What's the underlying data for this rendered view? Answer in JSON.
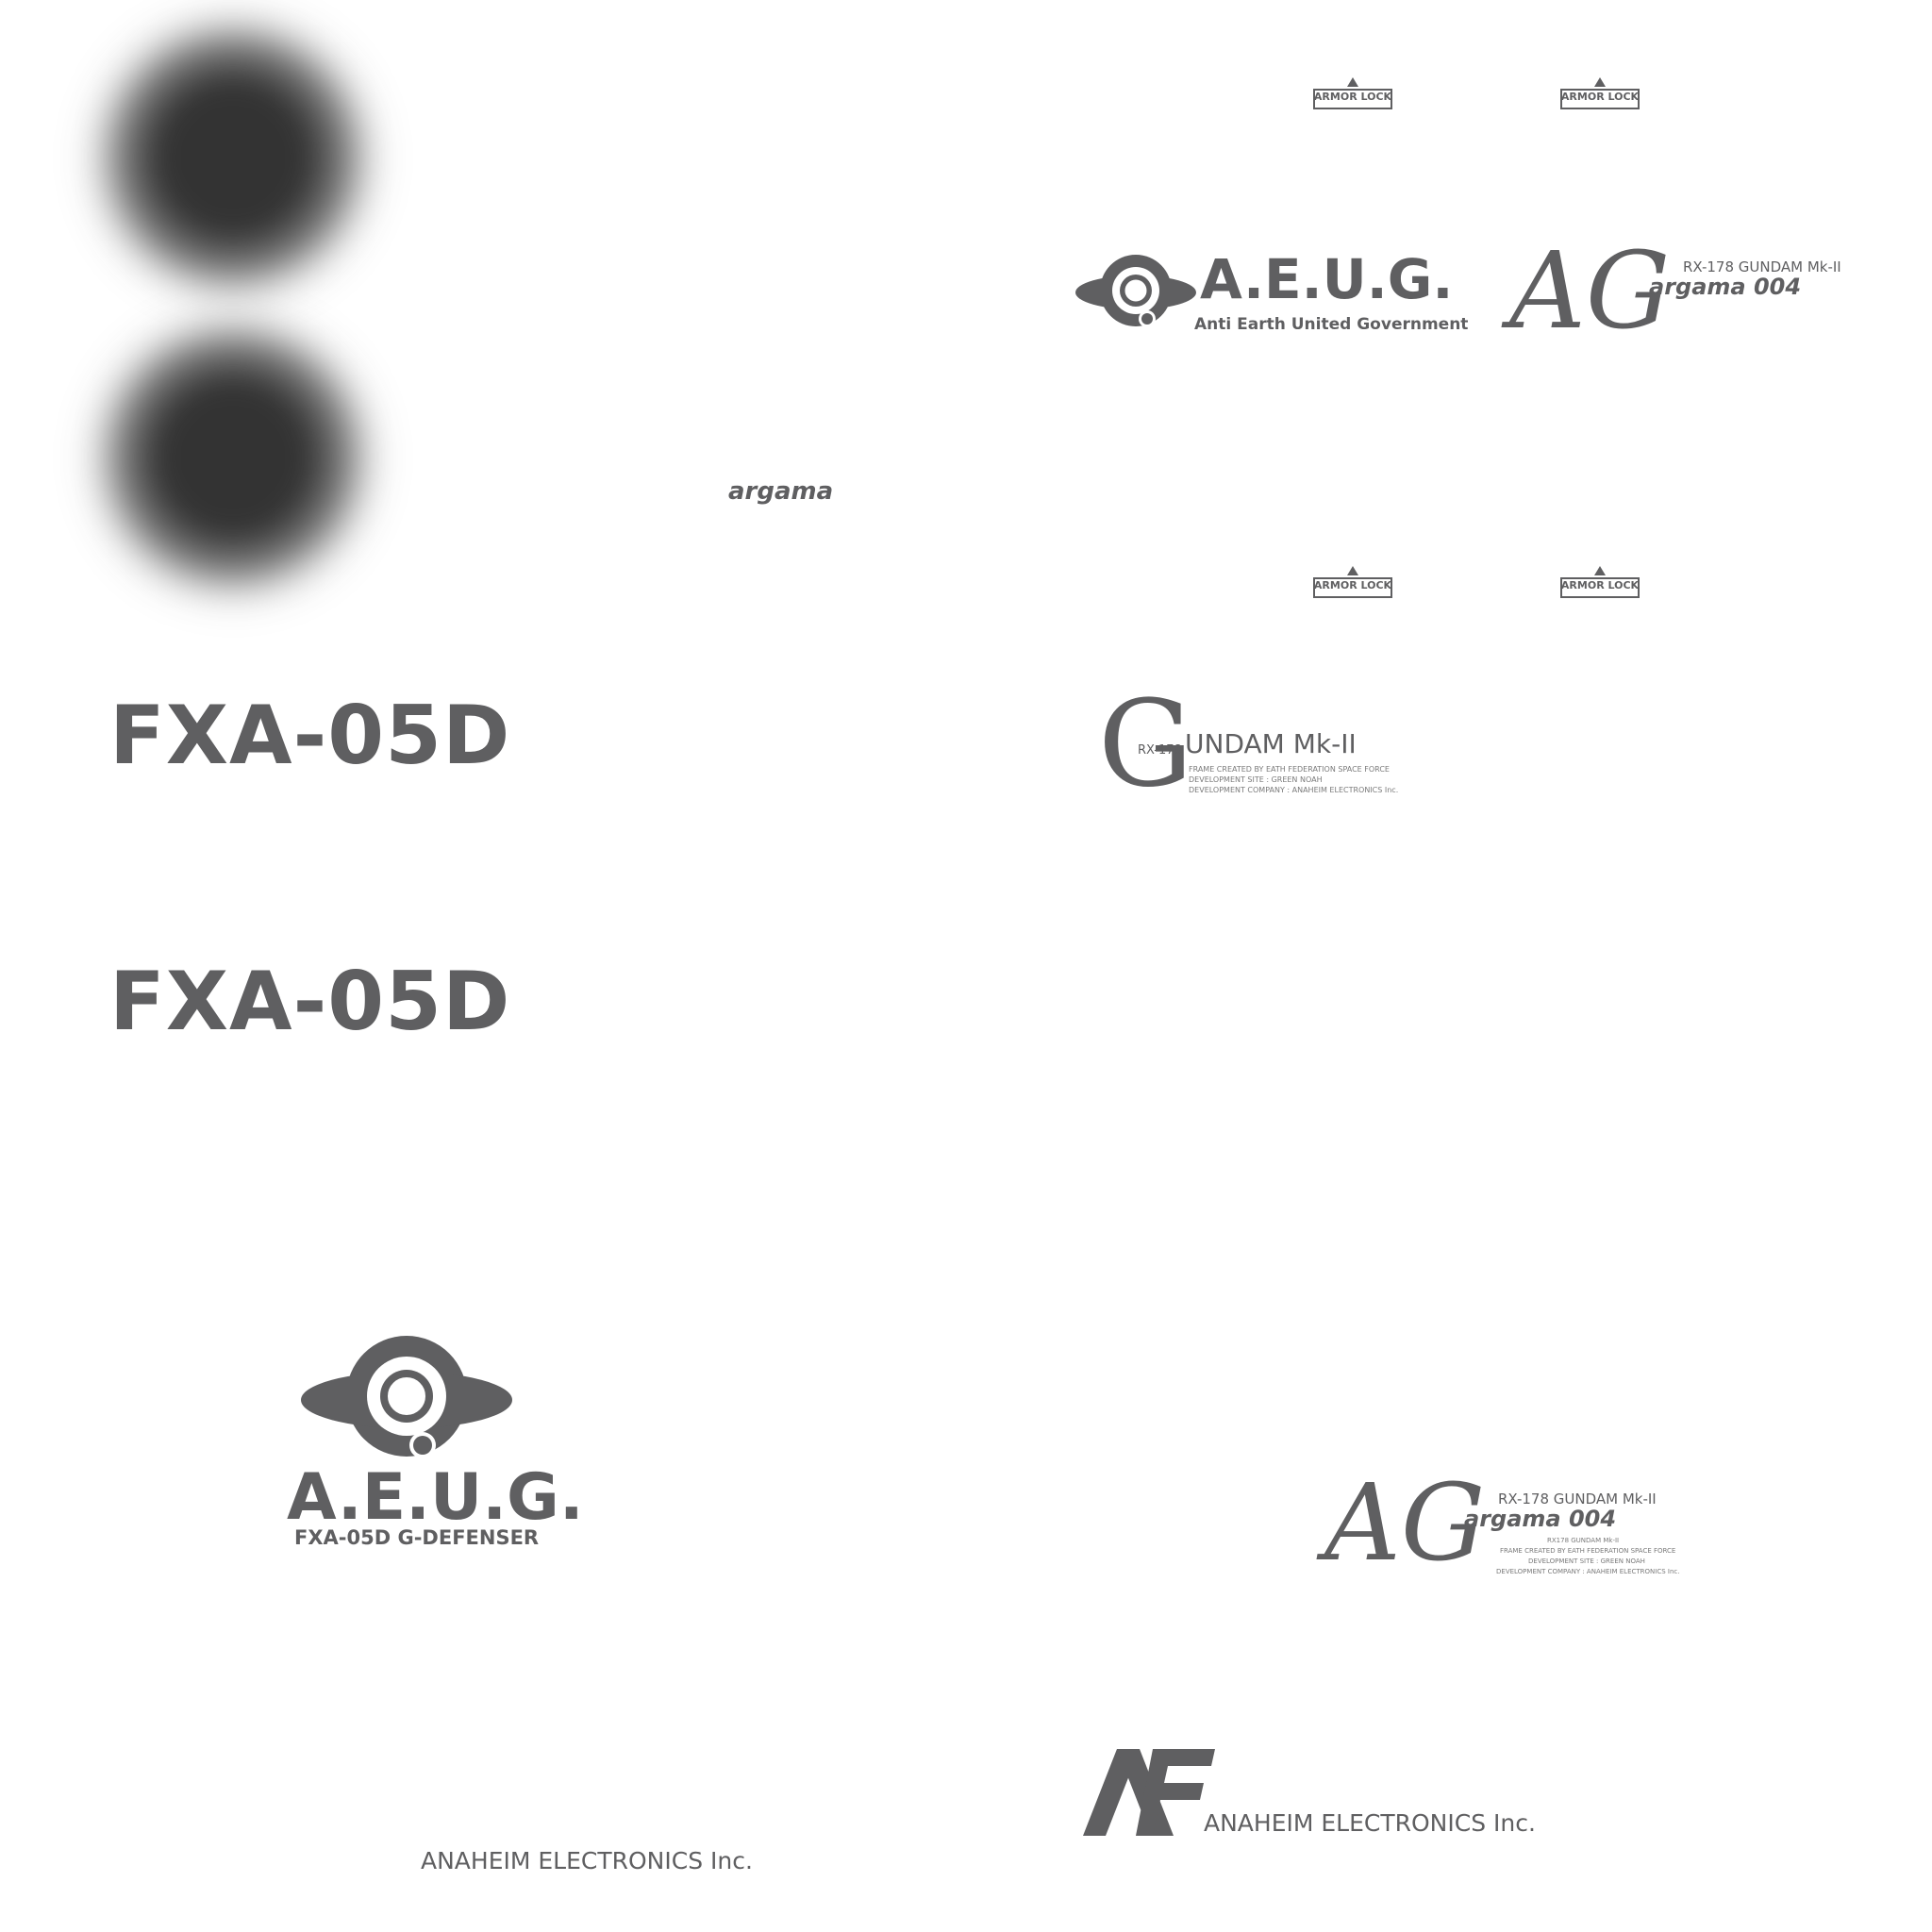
{
  "colors": {
    "ink": "#5f5f61",
    "dark": "#333333",
    "background": "#ffffff"
  },
  "logo_text": {
    "argama_small": "argama",
    "fxa_1": "FXA-05D",
    "fxa_2": "FXA-05D",
    "aeug_big_title": "A.E.U.G.",
    "aeug_big_sub": "FXA-05D G-DEFENSER",
    "anaheim_text_1": "ANAHEIM ELECTRONICS Inc.",
    "anaheim_text_2": "ANAHEIM ELECTRONICS Inc.",
    "aeug_small_title": "A.E.U.G.",
    "aeug_small_sub": "Anti Earth United Government",
    "ag_1_letters": "AG",
    "ag_1_model": "RX-178  GUNDAM Mk-II",
    "ag_1_argama": "argama 004",
    "gundam_g": "G",
    "gundam_rx": "RX-178",
    "gundam_title": "UNDAM Mk-II",
    "gundam_line1": "FRAME CREATED BY EATH FEDERATION SPACE FORCE",
    "gundam_line2": "DEVELOPMENT SITE : GREEN NOAH",
    "gundam_line3": "DEVELOPMENT COMPANY : ANAHEIM ELECTRONICS Inc.",
    "ag_2_letters": "AG",
    "ag_2_model": "RX-178  GUNDAM Mk-II",
    "ag_2_argama": "argama 004",
    "ag_2_line0": "RX178 GUNDAM Mk-II",
    "ag_2_line1": "FRAME CREATED BY EATH FEDERATION SPACE FORCE",
    "ag_2_line2": "DEVELOPMENT SITE : GREEN NOAH",
    "ag_2_line3": "DEVELOPMENT COMPANY : ANAHEIM ELECTRONICS Inc."
  },
  "armor_locks": [
    {
      "label": "ARMOR LOCK"
    },
    {
      "label": "ARMOR LOCK"
    },
    {
      "label": "ARMOR LOCK"
    },
    {
      "label": "ARMOR LOCK"
    }
  ],
  "icons": [
    "blur-circle-icon",
    "aeug-emblem-icon",
    "anaheim-ae-logo-icon"
  ]
}
